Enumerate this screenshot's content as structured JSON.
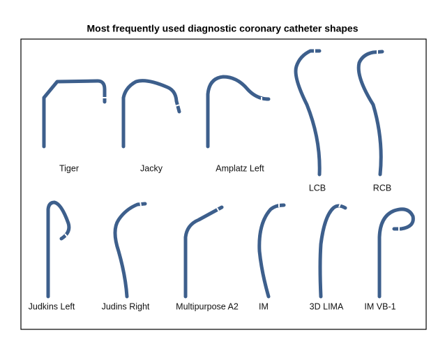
{
  "title": "Most frequently used diagnostic coronary catheter shapes",
  "catheters": [
    {
      "label": "Tiger"
    },
    {
      "label": "Jacky"
    },
    {
      "label": "Amplatz Left"
    },
    {
      "label": "LCB"
    },
    {
      "label": "RCB"
    },
    {
      "label": "Judkins Left"
    },
    {
      "label": "Judins Right"
    },
    {
      "label": "Multipurpose A2"
    },
    {
      "label": "IM"
    },
    {
      "label": "3D LIMA"
    },
    {
      "label": "IM VB-1"
    }
  ]
}
